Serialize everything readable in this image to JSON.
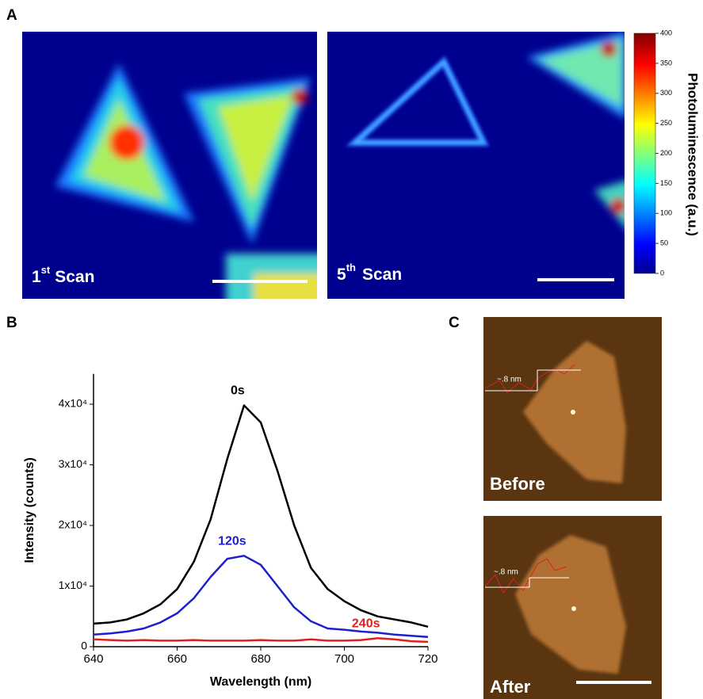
{
  "panels": {
    "a": "A",
    "b": "B",
    "c": "C"
  },
  "heatmaps": [
    {
      "number": "1",
      "suffix": "st",
      "word": "Scan"
    },
    {
      "number": "5",
      "suffix": "th",
      "word": "Scan"
    }
  ],
  "colorbar": {
    "label": "Photoluminescence (a.u.)",
    "clim": [
      0,
      400
    ],
    "ticks": [
      0,
      50,
      100,
      150,
      200,
      250,
      300,
      350,
      400
    ]
  },
  "afm": {
    "images": [
      "Before",
      "After"
    ],
    "step_labels": [
      "~.8 nm",
      "~.8 nm"
    ]
  },
  "chart_data": {
    "type": "line",
    "xlabel": "Wavelength (nm)",
    "ylabel": "Intensity (counts)",
    "x": [
      640,
      644,
      648,
      652,
      656,
      660,
      664,
      668,
      672,
      676,
      680,
      684,
      688,
      692,
      696,
      700,
      704,
      708,
      712,
      716,
      720
    ],
    "series": [
      {
        "name": "0s",
        "color": "#000000",
        "values": [
          3800,
          4000,
          4500,
          5500,
          7000,
          9500,
          14000,
          21000,
          31000,
          39800,
          37000,
          29000,
          20000,
          13000,
          9500,
          7500,
          6000,
          5000,
          4500,
          4000,
          3300
        ]
      },
      {
        "name": "120s",
        "color": "#1f1fd0",
        "values": [
          2000,
          2200,
          2500,
          3000,
          4000,
          5500,
          8000,
          11500,
          14500,
          15000,
          13500,
          10000,
          6500,
          4200,
          3000,
          2800,
          2500,
          2300,
          2000,
          1800,
          1600
        ]
      },
      {
        "name": "240s",
        "color": "#e02020",
        "values": [
          1200,
          1100,
          1000,
          1100,
          1000,
          1000,
          1100,
          1000,
          1000,
          1000,
          1100,
          1000,
          1000,
          1200,
          1000,
          1000,
          1100,
          1400,
          1200,
          900,
          800
        ]
      }
    ],
    "xlim": [
      640,
      720
    ],
    "ylim": [
      0,
      45000
    ],
    "xticks": [
      640,
      660,
      680,
      700,
      720
    ],
    "yticks": [
      0,
      {
        "value": 10000,
        "label": "1x10⁴"
      },
      {
        "value": 20000,
        "label": "2x10⁴"
      },
      {
        "value": 30000,
        "label": "3x10⁴"
      },
      {
        "value": 40000,
        "label": "4x10⁴"
      }
    ]
  }
}
